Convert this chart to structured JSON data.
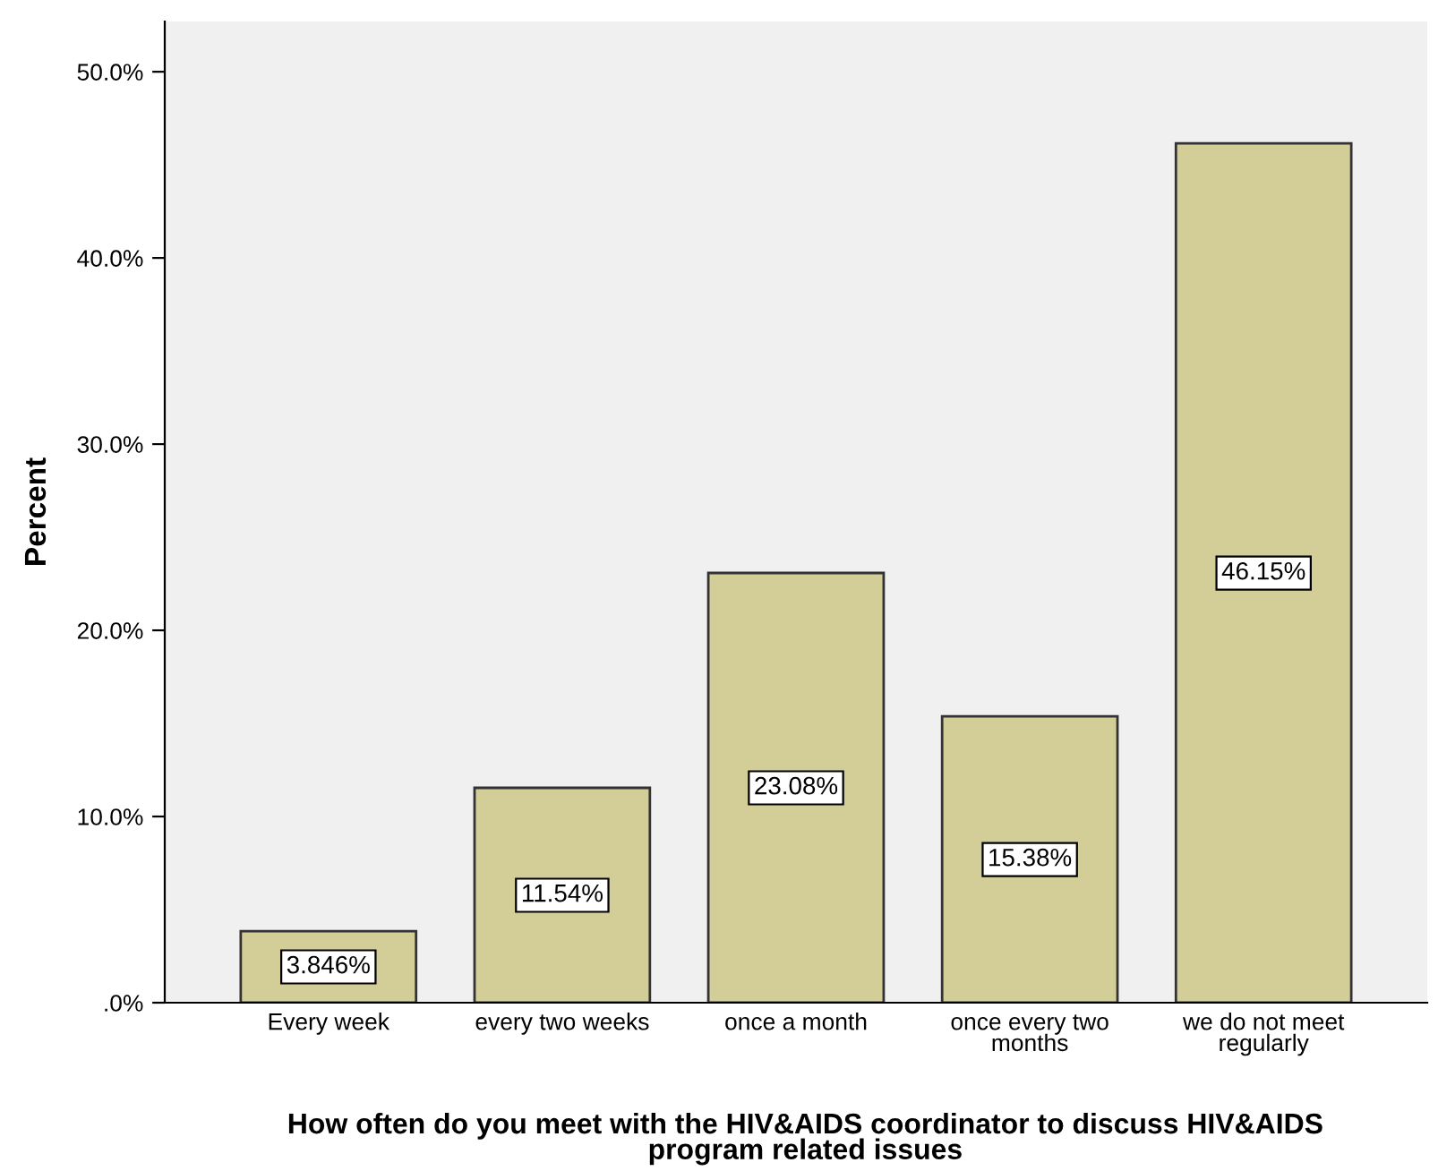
{
  "chart_data": {
    "type": "bar",
    "xlabel": "How often do you meet with the HIV&AIDS coordinator to discuss HIV&AIDS\nprogram related issues",
    "ylabel": "Percent",
    "categories": [
      "Every week",
      "every two weeks",
      "once a month",
      "once every two\nmonths",
      "we do not meet\nregularly"
    ],
    "values": [
      3.846,
      11.54,
      23.08,
      15.38,
      46.15
    ],
    "value_labels": [
      "3.846%",
      "11.54%",
      "23.08%",
      "15.38%",
      "46.15%"
    ],
    "color": "#d3ce97",
    "ylim": [
      0,
      52.7
    ],
    "yticks": [
      {
        "value": 0,
        "label": ".0%"
      },
      {
        "value": 10,
        "label": "10.0%"
      },
      {
        "value": 20,
        "label": "20.0%"
      },
      {
        "value": 30,
        "label": "30.0%"
      },
      {
        "value": 40,
        "label": "40.0%"
      },
      {
        "value": 50,
        "label": "50.0%"
      }
    ],
    "grid": false,
    "legend": false
  }
}
